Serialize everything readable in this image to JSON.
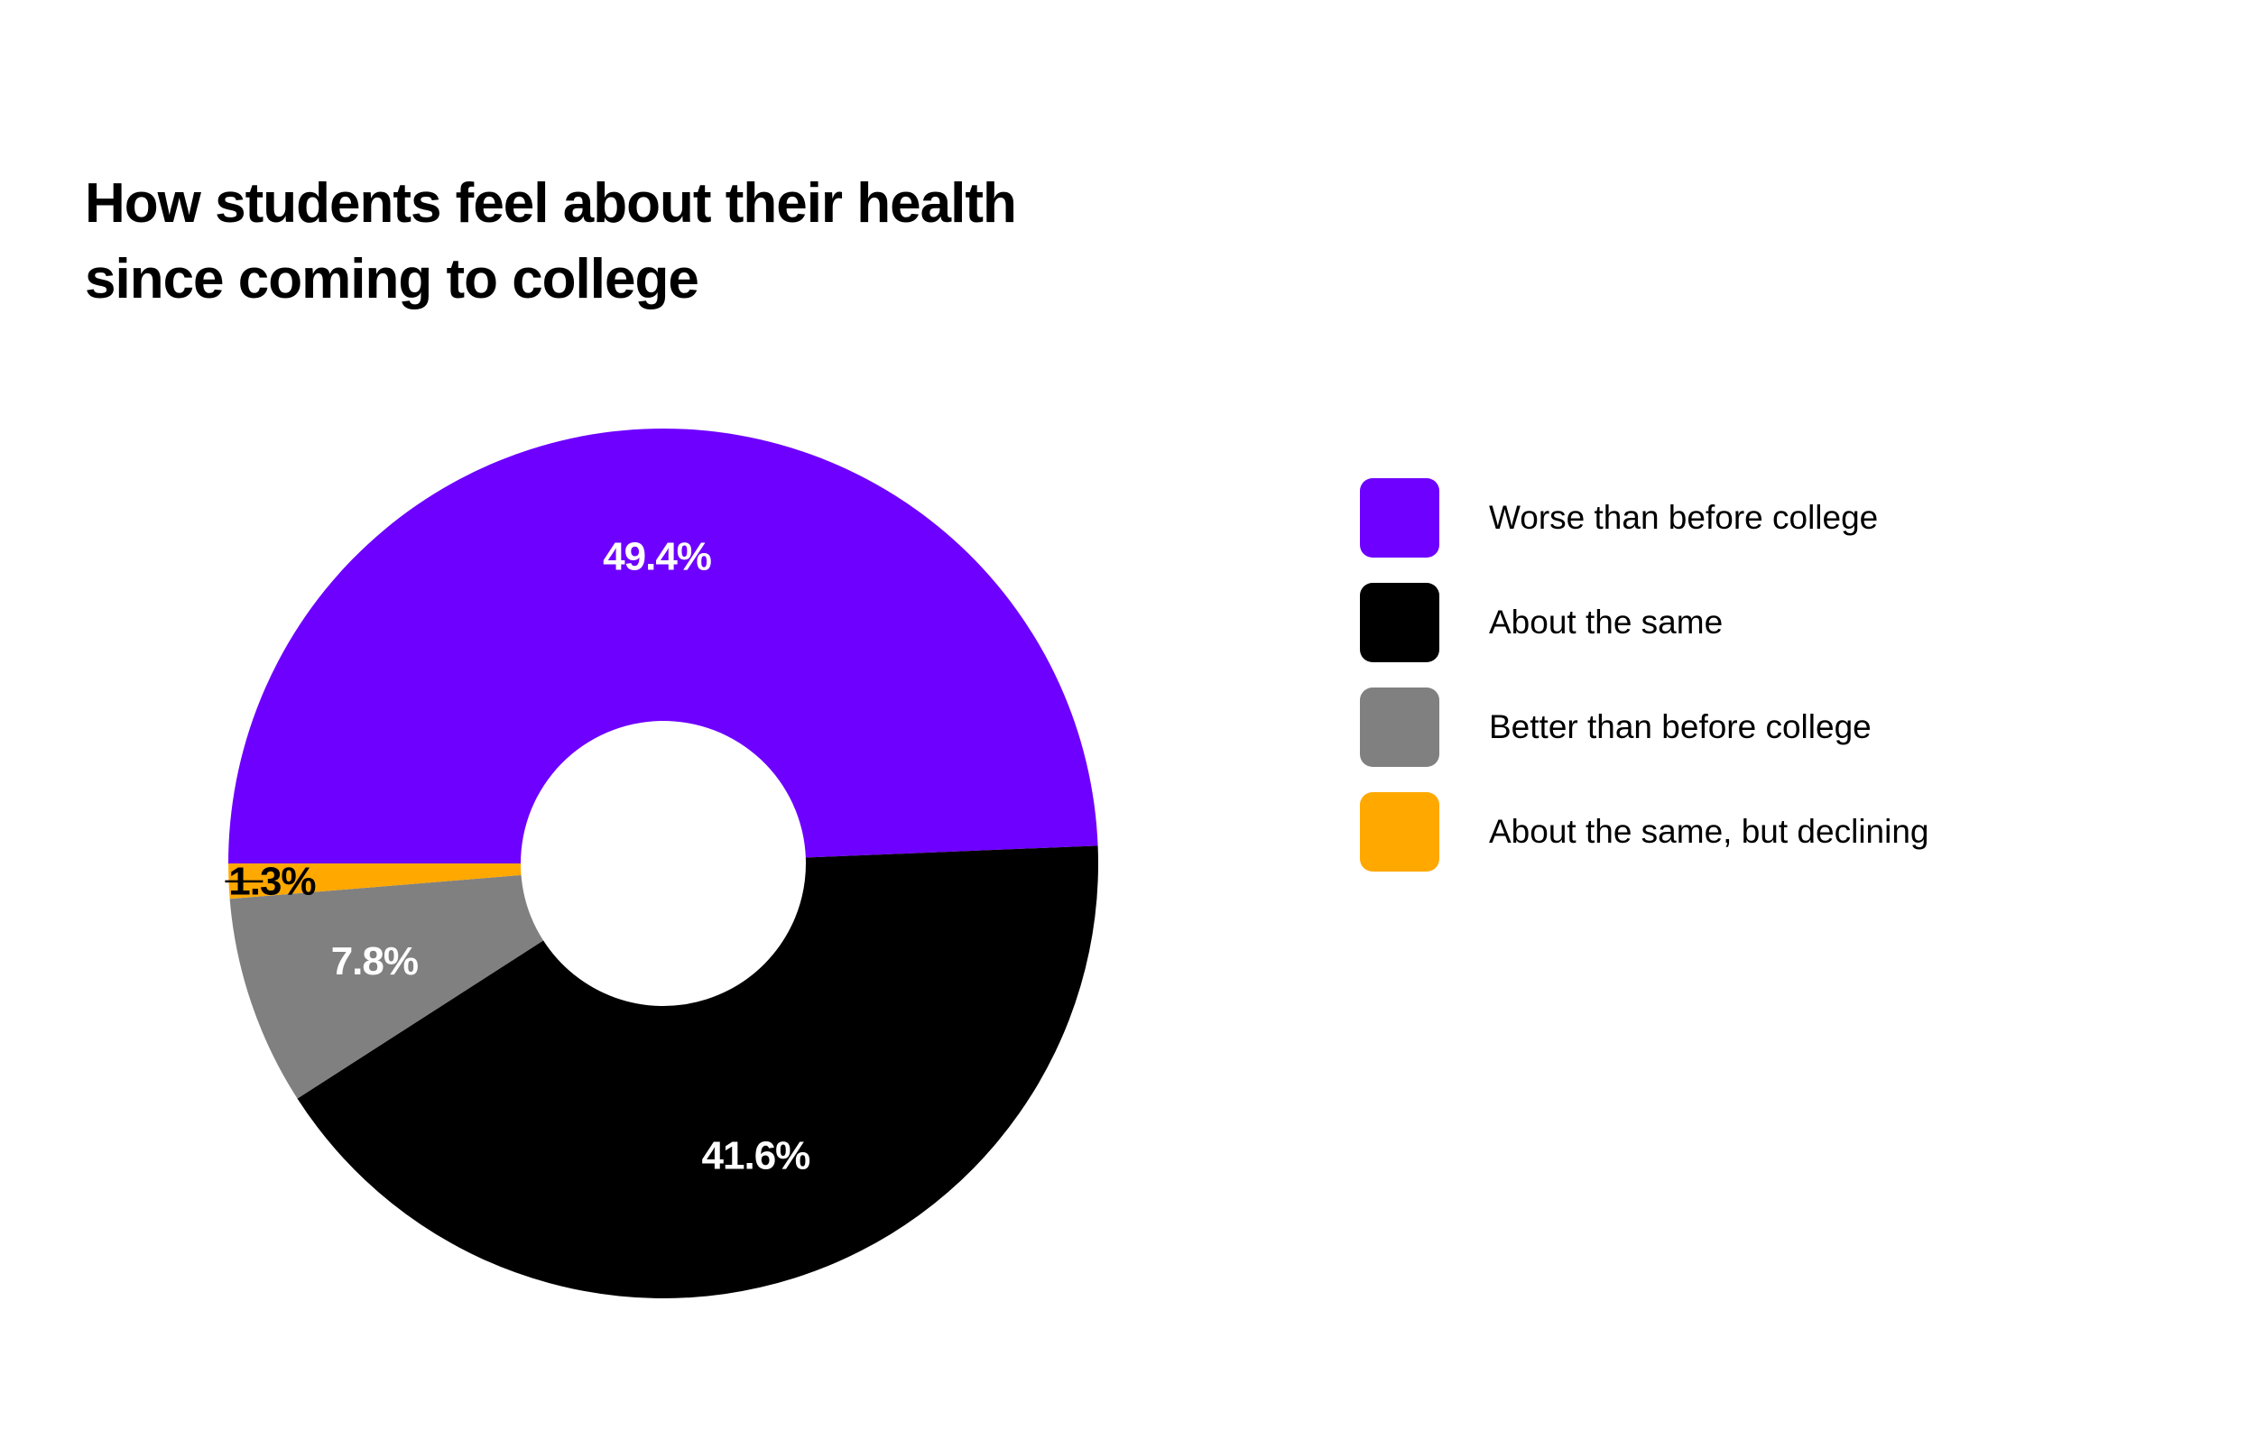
{
  "chart_data": {
    "type": "pie",
    "subtype": "donut",
    "title_lines": [
      "How students feel about their health",
      "since coming to college"
    ],
    "series": [
      {
        "name": "Worse than before college",
        "value": 49.4,
        "label": "49.4%",
        "color": "#6E00FF",
        "label_color": "#FFFFFF"
      },
      {
        "name": "About the same",
        "value": 41.6,
        "label": "41.6%",
        "color": "#000000",
        "label_color": "#FFFFFF"
      },
      {
        "name": "Better than before college",
        "value": 7.8,
        "label": "7.8%",
        "color": "#808080",
        "label_color": "#FFFFFF"
      },
      {
        "name": "About the same, but declining",
        "value": 1.3,
        "label": "1.3%",
        "color": "#FFA800",
        "label_color": "#000000",
        "label_outside": true
      }
    ],
    "legend_position": "right"
  }
}
